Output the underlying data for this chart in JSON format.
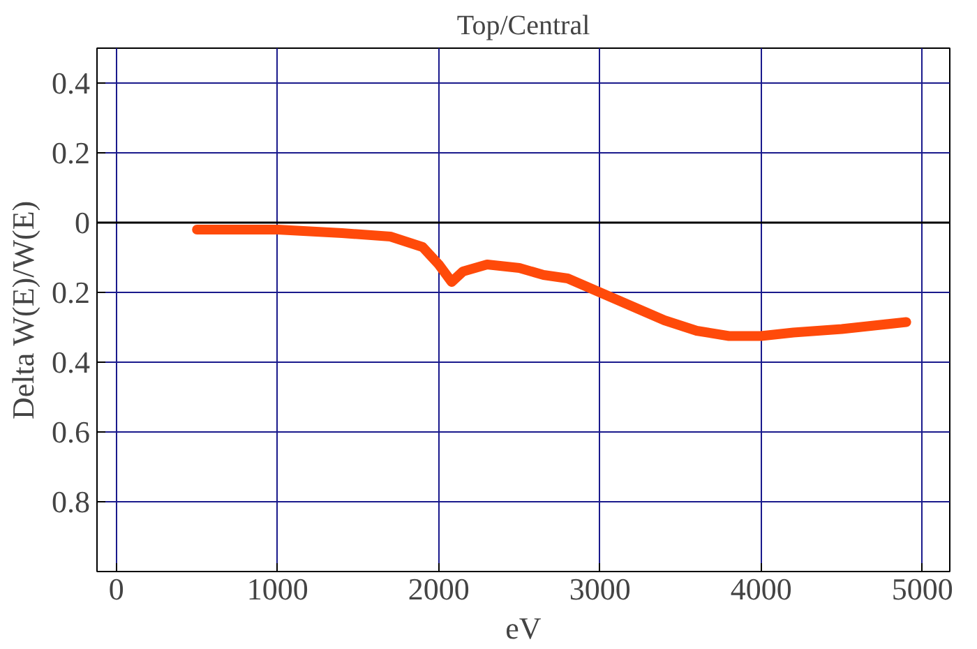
{
  "chart_data": {
    "type": "line",
    "title": "Top/Central",
    "xlabel": "eV",
    "ylabel": "Delta W(E)/W(E)",
    "x": [
      500,
      1000,
      1400,
      1700,
      1900,
      2000,
      2080,
      2150,
      2300,
      2500,
      2650,
      2800,
      3000,
      3200,
      3400,
      3600,
      3800,
      4000,
      4200,
      4500,
      4700,
      4900
    ],
    "series": [
      {
        "color": "#ff4a0a",
        "values": [
          -0.02,
          -0.02,
          -0.03,
          -0.04,
          -0.07,
          -0.12,
          -0.17,
          -0.14,
          -0.12,
          -0.13,
          -0.15,
          -0.16,
          -0.2,
          -0.24,
          -0.28,
          -0.31,
          -0.325,
          -0.325,
          -0.315,
          -0.305,
          -0.295,
          -0.285
        ]
      }
    ],
    "xlim": [
      -120,
      5170
    ],
    "ylim": [
      -1.0,
      0.5
    ],
    "xticks": [
      0,
      1000,
      2000,
      3000,
      4000,
      5000
    ],
    "yticks": [
      {
        "value": 0.4,
        "label": "0.4"
      },
      {
        "value": 0.2,
        "label": "0.2"
      },
      {
        "value": 0,
        "label": "0"
      },
      {
        "value": -0.2,
        "label": "0.2"
      },
      {
        "value": -0.4,
        "label": "0.4"
      },
      {
        "value": -0.6,
        "label": "0.6"
      },
      {
        "value": -0.8,
        "label": "0.8"
      }
    ],
    "grid": true,
    "marker": "none",
    "line_style": "solid",
    "ref_lines": [
      {
        "axis": "y",
        "value": 0,
        "color": "#000000"
      }
    ]
  }
}
